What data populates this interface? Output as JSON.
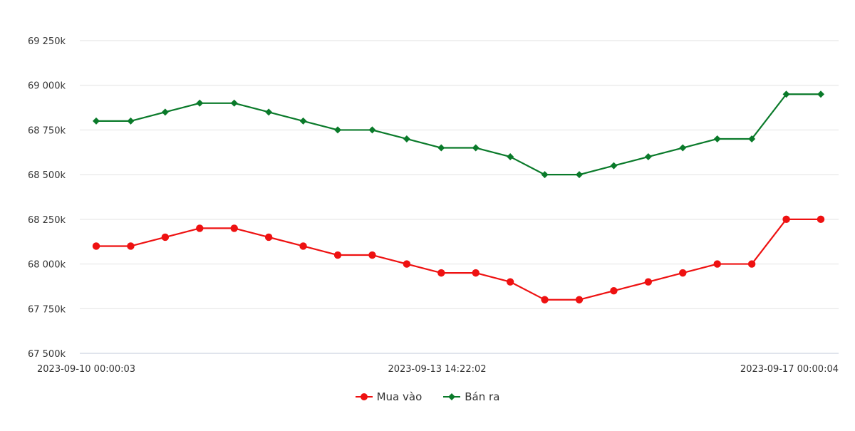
{
  "chart_data": {
    "type": "line",
    "x_tick_labels": [
      "2023-09-10 00:00:03",
      "2023-09-13 14:22:02",
      "2023-09-17 00:00:04"
    ],
    "y_tick_labels": [
      "67 500k",
      "67 750k",
      "68 000k",
      "68 250k",
      "68 500k",
      "68 750k",
      "69 000k",
      "69 250k"
    ],
    "y_ticks": [
      67500,
      67750,
      68000,
      68250,
      68500,
      68750,
      69000,
      69250
    ],
    "ylim": [
      67500,
      69250
    ],
    "grid": true,
    "legend_placement": "bottom-center",
    "point_count": 22,
    "series": [
      {
        "name": "Mua vào",
        "color": "#ee1111",
        "marker": "circle",
        "values": [
          68100,
          68100,
          68150,
          68200,
          68200,
          68150,
          68100,
          68050,
          68050,
          68000,
          67950,
          67950,
          67900,
          67800,
          67800,
          67850,
          67900,
          67950,
          68000,
          68000,
          68250,
          68250
        ]
      },
      {
        "name": "Bán ra",
        "color": "#0a7a2a",
        "marker": "diamond",
        "values": [
          68800,
          68800,
          68850,
          68900,
          68900,
          68850,
          68800,
          68750,
          68750,
          68700,
          68650,
          68650,
          68600,
          68500,
          68500,
          68550,
          68600,
          68650,
          68700,
          68700,
          68950,
          68950
        ]
      }
    ]
  }
}
